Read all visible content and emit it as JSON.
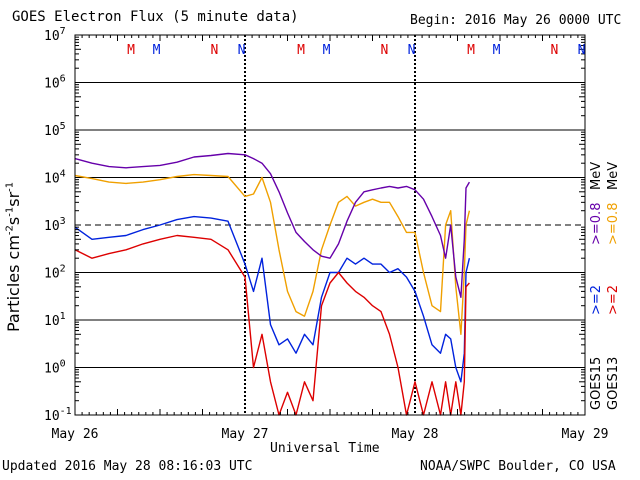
{
  "header": {
    "title": "GOES Electron Flux (5 minute data)",
    "begin": "Begin: 2016 May 26 0000 UTC"
  },
  "footer": {
    "updated": "Updated 2016 May 28 08:16:03 UTC",
    "credit": "NOAA/SWPC Boulder, CO USA"
  },
  "colors": {
    "goes15_high": "#0022dd",
    "goes13_high": "#dd0000",
    "goes15_low": "#6600aa",
    "goes13_low": "#f0a000",
    "marker_m": [
      "#dd0000",
      "#0022dd"
    ],
    "marker_n": [
      "#dd0000",
      "#0022dd"
    ]
  },
  "legend": {
    "goes15": "GOES15",
    "goes13": "GOES13",
    "ge2_goes15": ">=2",
    "ge2_goes13": ">=2",
    "ge08_goes15": ">=0.8",
    "ge08_goes13": ">=0.8",
    "unit": "MeV"
  },
  "chart_data": {
    "type": "line",
    "title": "GOES Electron Flux (5 minute data)",
    "xlabel": "Universal Time",
    "ylabel": "Particles cm-2s-1sr-1",
    "y_scale": "log",
    "ylim": [
      0.1,
      10000000
    ],
    "xlim_days": [
      0,
      3
    ],
    "x_tick_labels": [
      "May 26",
      "May 27",
      "May 28",
      "May 29"
    ],
    "y_tick_labels": [
      {
        "base": "10",
        "exp": "7"
      },
      {
        "base": "10",
        "exp": "6"
      },
      {
        "base": "10",
        "exp": "5"
      },
      {
        "base": "10",
        "exp": "4"
      },
      {
        "base": "10",
        "exp": "3"
      },
      {
        "base": "10",
        "exp": "2"
      },
      {
        "base": "10",
        "exp": "1"
      },
      {
        "base": "10",
        "exp": "0"
      },
      {
        "base": "10",
        "exp": "-1"
      }
    ],
    "dashed_reference": 1000,
    "grid": true,
    "day_markers": [
      {
        "letter": "M",
        "color": "red",
        "day": 0.33
      },
      {
        "letter": "M",
        "color": "blue",
        "day": 0.48
      },
      {
        "letter": "N",
        "color": "red",
        "day": 0.82
      },
      {
        "letter": "N",
        "color": "blue",
        "day": 0.98
      },
      {
        "letter": "M",
        "color": "red",
        "day": 1.33
      },
      {
        "letter": "M",
        "color": "blue",
        "day": 1.48
      },
      {
        "letter": "N",
        "color": "red",
        "day": 1.82
      },
      {
        "letter": "N",
        "color": "blue",
        "day": 1.98
      },
      {
        "letter": "M",
        "color": "red",
        "day": 2.33
      },
      {
        "letter": "M",
        "color": "blue",
        "day": 2.48
      },
      {
        "letter": "N",
        "color": "red",
        "day": 2.82
      },
      {
        "letter": "N",
        "color": "blue",
        "day": 2.98
      }
    ],
    "series": [
      {
        "name": "GOES15 >=0.8 MeV",
        "points": [
          [
            0.0,
            25000
          ],
          [
            0.1,
            20000
          ],
          [
            0.2,
            17000
          ],
          [
            0.3,
            16000
          ],
          [
            0.4,
            17000
          ],
          [
            0.5,
            18000
          ],
          [
            0.6,
            21000
          ],
          [
            0.7,
            27000
          ],
          [
            0.8,
            29000
          ],
          [
            0.9,
            32000
          ],
          [
            1.0,
            30000
          ],
          [
            1.05,
            25000
          ],
          [
            1.1,
            20000
          ],
          [
            1.15,
            12000
          ],
          [
            1.2,
            5000
          ],
          [
            1.25,
            1800
          ],
          [
            1.3,
            700
          ],
          [
            1.35,
            450
          ],
          [
            1.4,
            300
          ],
          [
            1.45,
            220
          ],
          [
            1.5,
            200
          ],
          [
            1.55,
            400
          ],
          [
            1.6,
            1200
          ],
          [
            1.65,
            3000
          ],
          [
            1.7,
            5000
          ],
          [
            1.75,
            5500
          ],
          [
            1.8,
            6000
          ],
          [
            1.85,
            6500
          ],
          [
            1.9,
            6000
          ],
          [
            1.95,
            6500
          ],
          [
            2.0,
            5500
          ],
          [
            2.05,
            3500
          ],
          [
            2.1,
            1500
          ],
          [
            2.15,
            600
          ],
          [
            2.18,
            200
          ],
          [
            2.21,
            1000
          ],
          [
            2.24,
            80
          ],
          [
            2.27,
            30
          ],
          [
            2.29,
            500
          ],
          [
            2.3,
            6000
          ],
          [
            2.32,
            8000
          ]
        ]
      },
      {
        "name": "GOES13 >=0.8 MeV",
        "points": [
          [
            0.0,
            11000
          ],
          [
            0.1,
            9500
          ],
          [
            0.2,
            8000
          ],
          [
            0.3,
            7500
          ],
          [
            0.4,
            8000
          ],
          [
            0.5,
            9000
          ],
          [
            0.6,
            10500
          ],
          [
            0.7,
            11500
          ],
          [
            0.8,
            11000
          ],
          [
            0.9,
            10500
          ],
          [
            1.0,
            4000
          ],
          [
            1.05,
            4500
          ],
          [
            1.1,
            10000
          ],
          [
            1.15,
            3000
          ],
          [
            1.2,
            300
          ],
          [
            1.25,
            40
          ],
          [
            1.3,
            15
          ],
          [
            1.35,
            12
          ],
          [
            1.4,
            40
          ],
          [
            1.45,
            300
          ],
          [
            1.5,
            1000
          ],
          [
            1.55,
            3000
          ],
          [
            1.6,
            4000
          ],
          [
            1.65,
            2500
          ],
          [
            1.7,
            3000
          ],
          [
            1.75,
            3500
          ],
          [
            1.8,
            3000
          ],
          [
            1.85,
            3000
          ],
          [
            1.9,
            1500
          ],
          [
            1.95,
            700
          ],
          [
            2.0,
            700
          ],
          [
            2.05,
            100
          ],
          [
            2.1,
            20
          ],
          [
            2.15,
            15
          ],
          [
            2.18,
            1000
          ],
          [
            2.21,
            2000
          ],
          [
            2.24,
            50
          ],
          [
            2.27,
            5
          ],
          [
            2.29,
            100
          ],
          [
            2.3,
            1000
          ],
          [
            2.32,
            2000
          ]
        ]
      },
      {
        "name": "GOES15 >=2 MeV",
        "points": [
          [
            0.0,
            900
          ],
          [
            0.1,
            500
          ],
          [
            0.2,
            550
          ],
          [
            0.3,
            600
          ],
          [
            0.4,
            800
          ],
          [
            0.5,
            1000
          ],
          [
            0.6,
            1300
          ],
          [
            0.7,
            1500
          ],
          [
            0.8,
            1400
          ],
          [
            0.9,
            1200
          ],
          [
            1.0,
            150
          ],
          [
            1.05,
            40
          ],
          [
            1.1,
            200
          ],
          [
            1.15,
            8
          ],
          [
            1.2,
            3
          ],
          [
            1.25,
            4
          ],
          [
            1.3,
            2
          ],
          [
            1.35,
            5
          ],
          [
            1.4,
            3
          ],
          [
            1.45,
            30
          ],
          [
            1.5,
            100
          ],
          [
            1.55,
            100
          ],
          [
            1.6,
            200
          ],
          [
            1.65,
            150
          ],
          [
            1.7,
            200
          ],
          [
            1.75,
            150
          ],
          [
            1.8,
            150
          ],
          [
            1.85,
            100
          ],
          [
            1.9,
            120
          ],
          [
            1.95,
            80
          ],
          [
            2.0,
            40
          ],
          [
            2.05,
            12
          ],
          [
            2.1,
            3
          ],
          [
            2.15,
            2
          ],
          [
            2.18,
            5
          ],
          [
            2.21,
            4
          ],
          [
            2.24,
            1
          ],
          [
            2.27,
            0.5
          ],
          [
            2.29,
            2
          ],
          [
            2.3,
            100
          ],
          [
            2.32,
            200
          ]
        ]
      },
      {
        "name": "GOES13 >=2 MeV",
        "points": [
          [
            0.0,
            300
          ],
          [
            0.1,
            200
          ],
          [
            0.2,
            250
          ],
          [
            0.3,
            300
          ],
          [
            0.4,
            400
          ],
          [
            0.5,
            500
          ],
          [
            0.6,
            600
          ],
          [
            0.7,
            550
          ],
          [
            0.8,
            500
          ],
          [
            0.9,
            300
          ],
          [
            1.0,
            80
          ],
          [
            1.05,
            1
          ],
          [
            1.1,
            5
          ],
          [
            1.15,
            0.5
          ],
          [
            1.2,
            0.1
          ],
          [
            1.25,
            0.3
          ],
          [
            1.3,
            0.1
          ],
          [
            1.35,
            0.5
          ],
          [
            1.4,
            0.2
          ],
          [
            1.45,
            20
          ],
          [
            1.5,
            60
          ],
          [
            1.55,
            100
          ],
          [
            1.6,
            60
          ],
          [
            1.65,
            40
          ],
          [
            1.7,
            30
          ],
          [
            1.75,
            20
          ],
          [
            1.8,
            15
          ],
          [
            1.85,
            5
          ],
          [
            1.9,
            1
          ],
          [
            1.95,
            0.1
          ],
          [
            2.0,
            0.5
          ],
          [
            2.05,
            0.1
          ],
          [
            2.1,
            0.5
          ],
          [
            2.15,
            0.1
          ],
          [
            2.18,
            0.5
          ],
          [
            2.21,
            0.1
          ],
          [
            2.24,
            0.5
          ],
          [
            2.27,
            0.1
          ],
          [
            2.29,
            0.5
          ],
          [
            2.3,
            50
          ],
          [
            2.32,
            60
          ]
        ]
      }
    ]
  }
}
